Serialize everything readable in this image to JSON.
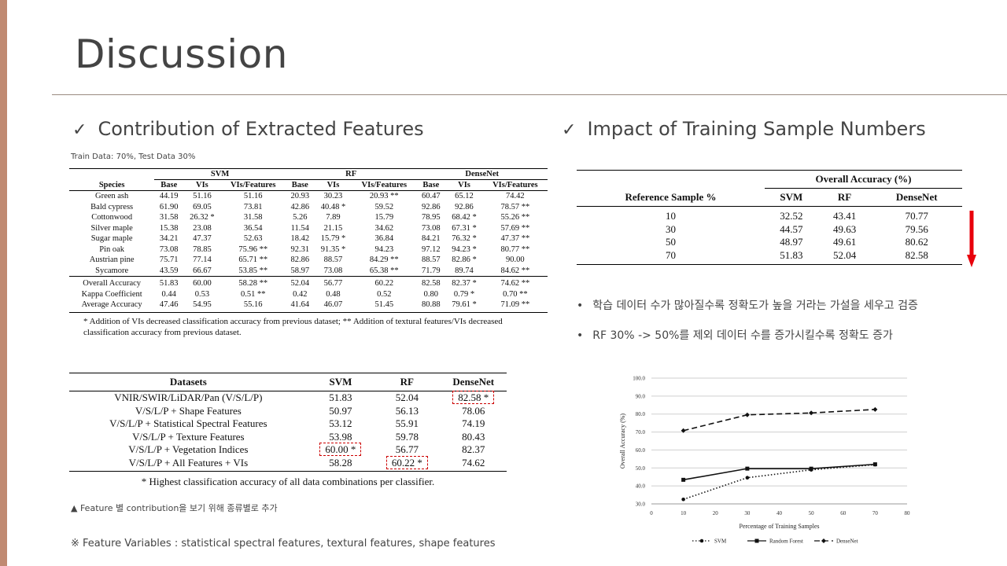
{
  "title": "Discussion",
  "left_section": {
    "heading": "Contribution of Extracted Features",
    "train_note": "Train Data: 70%, Test Data 30%",
    "table1": {
      "group_headers": [
        "SVM",
        "RF",
        "DenseNet"
      ],
      "col_headers": [
        "Species",
        "Base",
        "VIs",
        "VIs/Features",
        "Base",
        "VIs",
        "VIs/Features",
        "Base",
        "VIs",
        "VIs/Features"
      ],
      "rows": [
        [
          "Green ash",
          "44.19",
          "51.16",
          "51.16",
          "20.93",
          "30.23",
          "20.93 **",
          "60.47",
          "65.12",
          "74.42"
        ],
        [
          "Bald cypress",
          "61.90",
          "69.05",
          "73.81",
          "42.86",
          "40.48 *",
          "59.52",
          "92.86",
          "92.86",
          "78.57 **"
        ],
        [
          "Cottonwood",
          "31.58",
          "26.32 *",
          "31.58",
          "5.26",
          "7.89",
          "15.79",
          "78.95",
          "68.42 *",
          "55.26 **"
        ],
        [
          "Silver maple",
          "15.38",
          "23.08",
          "36.54",
          "11.54",
          "21.15",
          "34.62",
          "73.08",
          "67.31 *",
          "57.69 **"
        ],
        [
          "Sugar maple",
          "34.21",
          "47.37",
          "52.63",
          "18.42",
          "15.79 *",
          "36.84",
          "84.21",
          "76.32 *",
          "47.37 **"
        ],
        [
          "Pin oak",
          "73.08",
          "78.85",
          "75.96 **",
          "92.31",
          "91.35 *",
          "94.23",
          "97.12",
          "94.23 *",
          "80.77 **"
        ],
        [
          "Austrian pine",
          "75.71",
          "77.14",
          "65.71 **",
          "82.86",
          "88.57",
          "84.29 **",
          "88.57",
          "82.86 *",
          "90.00"
        ],
        [
          "Sycamore",
          "43.59",
          "66.67",
          "53.85 **",
          "58.97",
          "73.08",
          "65.38 **",
          "71.79",
          "89.74",
          "84.62 **"
        ]
      ],
      "summary_rows": [
        [
          "Overall Accuracy",
          "51.83",
          "60.00",
          "58.28 **",
          "52.04",
          "56.77",
          "60.22",
          "82.58",
          "82.37 *",
          "74.62 **"
        ],
        [
          "Kappa Coefficient",
          "0.44",
          "0.53",
          "0.51 **",
          "0.42",
          "0.48",
          "0.52",
          "0.80",
          "0.79 *",
          "0.70 **"
        ],
        [
          "Average Accuracy",
          "47.46",
          "54.95",
          "55.16",
          "41.64",
          "46.07",
          "51.45",
          "80.88",
          "79.61 *",
          "71.09 **"
        ]
      ],
      "note": "* Addition of VIs decreased classification accuracy from previous dataset; ** Addition of textural features/VIs decreased classification accuracy from previous dataset."
    },
    "table2": {
      "headers": [
        "Datasets",
        "SVM",
        "RF",
        "DenseNet"
      ],
      "rows": [
        [
          "VNIR/SWIR/LiDAR/Pan (V/S/L/P)",
          "51.83",
          "52.04",
          "82.58 *"
        ],
        [
          "V/S/L/P + Shape Features",
          "50.97",
          "56.13",
          "78.06"
        ],
        [
          "V/S/L/P + Statistical Spectral Features",
          "53.12",
          "55.91",
          "74.19"
        ],
        [
          "V/S/L/P + Texture Features",
          "53.98",
          "59.78",
          "80.43"
        ],
        [
          "V/S/L/P + Vegetation Indices",
          "60.00 *",
          "56.77",
          "82.37"
        ],
        [
          "V/S/L/P + All Features + VIs",
          "58.28",
          "60.22 *",
          "74.62"
        ]
      ],
      "note": "* Highest classification accuracy of all data combinations per classifier."
    },
    "caption": "▲ Feature 별 contribution을 보기 위해 종류별로 추가",
    "variables_note": "※ Feature Variables : statistical spectral features, textural features, shape features"
  },
  "right_section": {
    "heading": "Impact of Training Sample Numbers",
    "table3": {
      "group_header": "Overall Accuracy (%)",
      "headers": [
        "Reference Sample %",
        "SVM",
        "RF",
        "DenseNet"
      ],
      "rows": [
        [
          "10",
          "32.52",
          "43.41",
          "70.77"
        ],
        [
          "30",
          "44.57",
          "49.63",
          "79.56"
        ],
        [
          "50",
          "48.97",
          "49.61",
          "80.62"
        ],
        [
          "70",
          "51.83",
          "52.04",
          "82.58"
        ]
      ]
    },
    "arrow_color": "#e8000b",
    "bullets": [
      "학습 데이터 수가 많아질수록 정확도가 높을 거라는 가설을 세우고 검증",
      "RF 30% -> 50%를 제외 데이터 수를 증가시킬수록 정확도 증가"
    ]
  },
  "chart_data": {
    "type": "line",
    "x": [
      10,
      30,
      50,
      70
    ],
    "series": [
      {
        "name": "SVM",
        "values": [
          32.52,
          44.57,
          48.97,
          51.83
        ]
      },
      {
        "name": "Random Forest",
        "values": [
          43.41,
          49.63,
          49.61,
          52.04
        ]
      },
      {
        "name": "DenseNet",
        "values": [
          70.77,
          79.56,
          80.62,
          82.58
        ]
      }
    ],
    "xlabel": "Percentage of Training Samples",
    "ylabel": "Overall Accuracy (%)",
    "xlim": [
      0,
      80
    ],
    "ylim": [
      30,
      100
    ],
    "xticks": [
      "0",
      "10",
      "20",
      "30",
      "40",
      "50",
      "60",
      "70",
      "80"
    ],
    "yticks": [
      "30.0",
      "40.0",
      "50.0",
      "60.0",
      "70.0",
      "80.0",
      "90.0",
      "100.0"
    ],
    "legend": "bottom",
    "grid": true
  }
}
